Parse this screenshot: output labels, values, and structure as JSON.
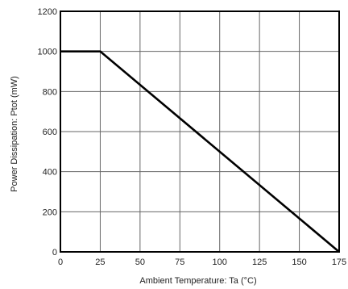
{
  "chart_data": {
    "type": "line",
    "xlabel": "Ambient Temperature: Ta (°C)",
    "ylabel": "Power Dissipation: Ptot (mW)",
    "xlim": [
      0,
      175
    ],
    "ylim": [
      0,
      1200
    ],
    "x_ticks": [
      0,
      25,
      50,
      75,
      100,
      125,
      150,
      175
    ],
    "y_ticks": [
      0,
      200,
      400,
      600,
      800,
      1000,
      1200
    ],
    "grid": true,
    "series": [
      {
        "x": [
          0,
          25,
          175
        ],
        "y": [
          1000,
          1000,
          0
        ]
      }
    ],
    "colors": {
      "line": "#000000",
      "grid": "#666666",
      "frame": "#000000"
    }
  }
}
